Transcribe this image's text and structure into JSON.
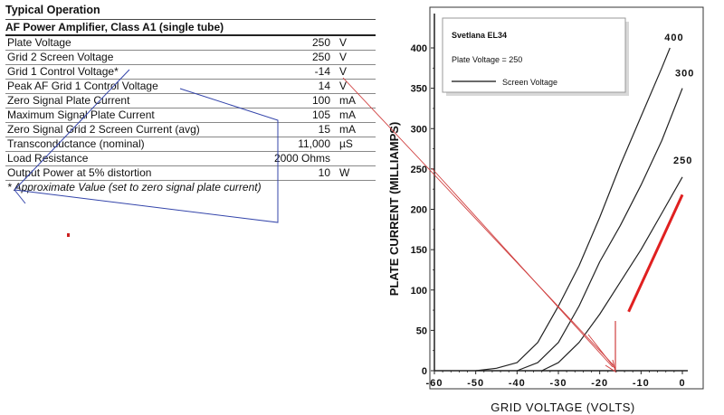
{
  "spec": {
    "heading": "Typical Operation",
    "subheading": "AF Power Amplifier, Class A1 (single tube)",
    "rows": [
      {
        "param": "Plate Voltage",
        "value": "250",
        "unit": "V"
      },
      {
        "param": "Grid 2 Screen Voltage",
        "value": "250",
        "unit": "V"
      },
      {
        "param": "Grid 1 Control Voltage*",
        "value": "-14",
        "unit": "V"
      },
      {
        "param": "Peak AF Grid 1 Control Voltage",
        "value": "14",
        "unit": "V"
      },
      {
        "param": "Zero Signal Plate Current",
        "value": "100",
        "unit": "mA"
      },
      {
        "param": "Maximum Signal Plate Current",
        "value": "105",
        "unit": "mA"
      },
      {
        "param": "Zero Signal Grid 2 Screen Current (avg)",
        "value": "15",
        "unit": "mA"
      },
      {
        "param": "Transconductance (nominal)",
        "value": "11,000",
        "unit": "µS"
      },
      {
        "param": "Load Resistance",
        "value": "2000 Ohms",
        "unit": ""
      },
      {
        "param": "Output Power at 5% distortion",
        "value": "10",
        "unit": "W"
      }
    ],
    "footnote": "* Approximate Value (set to zero signal plate current)"
  },
  "chart_data": {
    "type": "line",
    "title": "",
    "xlabel": "GRID  VOLTAGE (VOLTS)",
    "ylabel": "PLATE CURRENT (MILLIAMPS)",
    "xlim": [
      -60,
      0
    ],
    "ylim": [
      0,
      400
    ],
    "xticks": [
      "-60",
      "-50",
      "-40",
      "-30",
      "-20",
      "-10",
      "0"
    ],
    "yticks": [
      "0",
      "50",
      "100",
      "150",
      "200",
      "250",
      "300",
      "350",
      "400"
    ],
    "grid": false,
    "legend": {
      "placement": "top-left",
      "tube": "Svetlana EL34",
      "condition": "Plate Voltage = 250",
      "line_label": "Screen Voltage"
    },
    "series": [
      {
        "name": "400",
        "x": [
          -50,
          -45,
          -40,
          -35,
          -30,
          -25,
          -20,
          -15,
          -10,
          -5,
          -3
        ],
        "y": [
          0,
          3,
          10,
          35,
          80,
          130,
          190,
          255,
          315,
          375,
          400
        ]
      },
      {
        "name": "300",
        "x": [
          -40,
          -35,
          -30,
          -25,
          -20,
          -15,
          -10,
          -5,
          0
        ],
        "y": [
          0,
          10,
          35,
          80,
          135,
          180,
          230,
          285,
          350
        ]
      },
      {
        "name": "250",
        "x": [
          -34,
          -30,
          -25,
          -20,
          -15,
          -10,
          -5,
          0
        ],
        "y": [
          0,
          10,
          35,
          70,
          110,
          150,
          195,
          240
        ]
      },
      {
        "name": "",
        "x": [
          -13,
          0
        ],
        "y": [
          73,
          218
        ],
        "color": "#e02020"
      }
    ],
    "colors": {
      "curve": "#222222",
      "highlight": "#e02020",
      "annotation_red": "#d04040",
      "annotation_blue": "#3344aa"
    }
  }
}
